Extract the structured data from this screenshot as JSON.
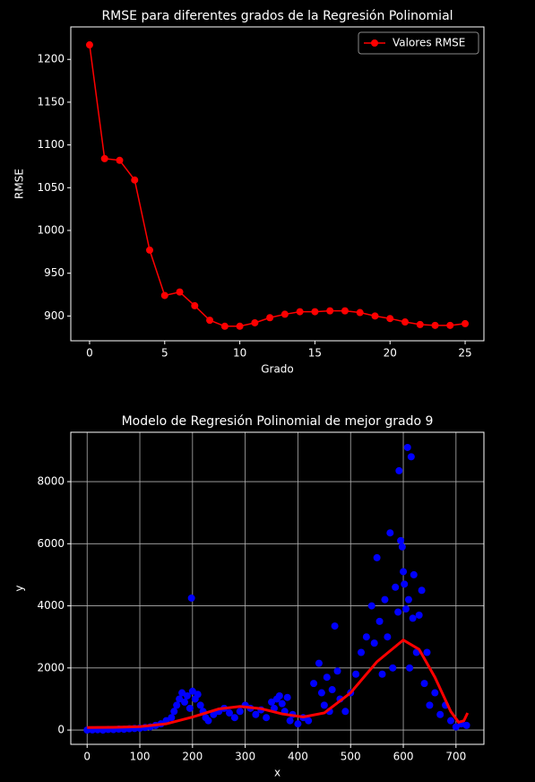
{
  "chart_data": [
    {
      "type": "line",
      "title": "RMSE para diferentes grados de la Regresión Polinomial",
      "xlabel": "Grado",
      "ylabel": "RMSE",
      "x": [
        0,
        1,
        2,
        3,
        4,
        5,
        6,
        7,
        8,
        9,
        10,
        11,
        12,
        13,
        14,
        15,
        16,
        17,
        18,
        19,
        20,
        21,
        22,
        23,
        24,
        25
      ],
      "series": [
        {
          "name": "Valores RMSE",
          "color": "#ff0000",
          "values": [
            1217,
            1084,
            1082,
            1059,
            977,
            924,
            928,
            912,
            895,
            888,
            888,
            892,
            898,
            902,
            905,
            905,
            906,
            906,
            904,
            900,
            897,
            893,
            890,
            889,
            889,
            891
          ]
        }
      ],
      "xlim": [
        -1.25,
        26.25
      ],
      "ylim": [
        871,
        1238
      ],
      "xticks": [
        0,
        5,
        10,
        15,
        20,
        25
      ],
      "yticks": [
        900,
        950,
        1000,
        1050,
        1100,
        1150,
        1200
      ],
      "legend": "upper right",
      "grid": false
    },
    {
      "type": "scatter",
      "title": "Modelo de Regresión Polinomial de mejor grado 9",
      "xlabel": "x",
      "ylabel": "y",
      "series": [
        {
          "mode": "markers",
          "color": "#0000ff",
          "x": [
            0,
            10,
            20,
            30,
            40,
            50,
            60,
            70,
            80,
            90,
            100,
            110,
            120,
            130,
            140,
            150,
            160,
            165,
            170,
            175,
            180,
            185,
            190,
            195,
            198,
            200,
            205,
            210,
            215,
            220,
            225,
            230,
            240,
            250,
            260,
            270,
            280,
            290,
            300,
            310,
            320,
            330,
            340,
            350,
            355,
            360,
            365,
            370,
            375,
            380,
            385,
            390,
            400,
            410,
            420,
            430,
            440,
            445,
            450,
            455,
            460,
            465,
            470,
            475,
            480,
            490,
            500,
            510,
            520,
            530,
            540,
            545,
            550,
            555,
            560,
            565,
            570,
            575,
            580,
            585,
            590,
            592,
            595,
            598,
            600,
            602,
            605,
            608,
            610,
            612,
            615,
            618,
            620,
            625,
            630,
            635,
            640,
            645,
            650,
            660,
            670,
            680,
            690,
            700,
            710,
            720
          ],
          "values": [
            0,
            5,
            10,
            0,
            20,
            15,
            30,
            25,
            40,
            50,
            60,
            80,
            100,
            150,
            200,
            300,
            400,
            600,
            800,
            1000,
            1200,
            900,
            1100,
            700,
            4250,
            1250,
            1000,
            1150,
            800,
            600,
            400,
            300,
            500,
            600,
            700,
            550,
            400,
            600,
            800,
            700,
            500,
            650,
            400,
            900,
            700,
            1000,
            1100,
            850,
            600,
            1050,
            300,
            500,
            200,
            400,
            300,
            1500,
            2150,
            1200,
            800,
            1700,
            600,
            1300,
            3350,
            1900,
            1000,
            600,
            1200,
            1800,
            2500,
            3000,
            4000,
            2800,
            5550,
            3500,
            1800,
            4200,
            3000,
            6350,
            2000,
            4600,
            3800,
            8350,
            6100,
            5900,
            5100,
            4700,
            3900,
            9100,
            4200,
            2000,
            8800,
            3600,
            5000,
            2500,
            3700,
            4500,
            1500,
            2500,
            800,
            1200,
            500,
            800,
            300,
            100,
            200,
            150
          ]
        },
        {
          "mode": "line",
          "color": "#ff0000",
          "x": [
            0,
            50,
            100,
            150,
            200,
            250,
            290,
            330,
            370,
            410,
            450,
            500,
            550,
            600,
            630,
            660,
            690,
            705,
            715,
            722
          ],
          "values": [
            80,
            90,
            110,
            200,
            420,
            680,
            760,
            690,
            520,
            420,
            550,
            1200,
            2200,
            2900,
            2600,
            1700,
            600,
            250,
            300,
            550
          ]
        }
      ],
      "xlim": [
        -31,
        753
      ],
      "ylim": [
        -460,
        9590
      ],
      "xticks": [
        0,
        100,
        200,
        300,
        400,
        500,
        600,
        700
      ],
      "yticks": [
        0,
        2000,
        4000,
        6000,
        8000
      ],
      "grid": true
    }
  ]
}
